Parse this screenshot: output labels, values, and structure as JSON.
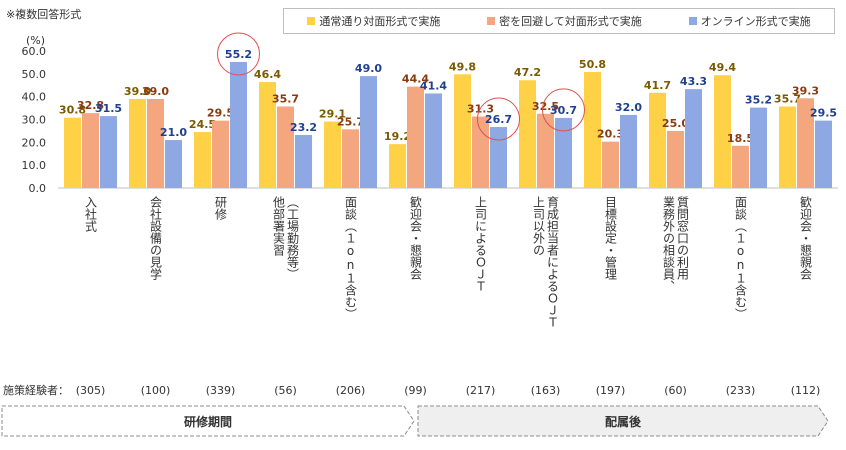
{
  "note": "※複数回答形式",
  "sample_label": "施策経験者：",
  "colors": {
    "series": [
      "#FFD147",
      "#F4A77E",
      "#8EA8E3"
    ],
    "value_text": [
      "#7a5a00",
      "#8a3a10",
      "#1f3f8f"
    ],
    "circle": "#e05050",
    "phase_text": "#333333"
  },
  "phases": [
    {
      "label": "研修期間",
      "from": 0,
      "to": 5
    },
    {
      "label": "配属後",
      "from": 6,
      "to": 11
    }
  ],
  "chart_data": {
    "type": "bar",
    "title": "",
    "ylabel": "(%)",
    "xlabel": "",
    "ylim": [
      0,
      60
    ],
    "yticks": [
      "0.0",
      "10.0",
      "20.0",
      "30.0",
      "40.0",
      "50.0",
      "60.0"
    ],
    "legend_position": "top",
    "categories": [
      "入社式",
      "会社設備の見学",
      "研修",
      "他部署実習\n（工場勤務等）",
      "面談（１on１含む）",
      "歓迎会・懇親会",
      "上司によるＯＪＴ",
      "上司以外の\n育成担当者によるＯＪＴ",
      "目標設定・管理",
      "業務外の相談員、\n質問窓口の利用",
      "面談（１on１含む）",
      "歓迎会・懇親会"
    ],
    "sample_sizes": [
      "(305)",
      "(100)",
      "(339)",
      "(56)",
      "(206)",
      "(99)",
      "(217)",
      "(163)",
      "(197)",
      "(60)",
      "(233)",
      "(112)"
    ],
    "series": [
      {
        "name": "通常通り対面形式で実施",
        "values": [
          30.8,
          39.0,
          24.5,
          46.4,
          29.1,
          19.2,
          49.8,
          47.2,
          50.8,
          41.7,
          49.4,
          35.7
        ]
      },
      {
        "name": "密を回避して対面形式で実施",
        "values": [
          32.8,
          39.0,
          29.5,
          35.7,
          25.7,
          44.4,
          31.3,
          32.5,
          20.3,
          25.0,
          18.5,
          39.3
        ]
      },
      {
        "name": "オンライン形式で実施",
        "values": [
          31.5,
          21.0,
          55.2,
          23.2,
          49.0,
          41.4,
          26.7,
          30.7,
          32.0,
          43.3,
          35.2,
          29.5
        ]
      }
    ],
    "highlighted": [
      {
        "category": 2,
        "series": 2
      },
      {
        "category": 6,
        "series": 2
      },
      {
        "category": 7,
        "series": 2
      }
    ]
  }
}
